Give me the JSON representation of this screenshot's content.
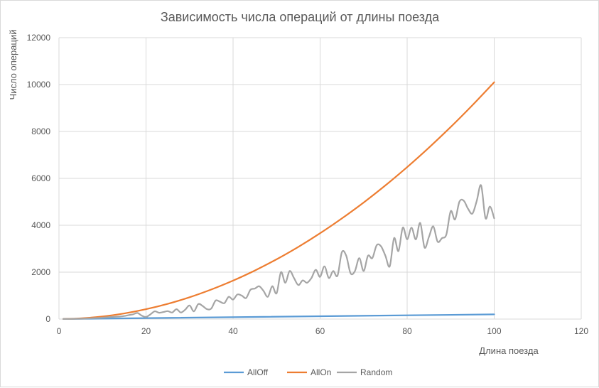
{
  "chart_data": {
    "type": "line",
    "title": "Зависимость числа операций от длины поезда",
    "xlabel": "Длина поезда",
    "ylabel": "Число операций",
    "xlim": [
      0,
      120
    ],
    "ylim": [
      0,
      12000
    ],
    "xticks": [
      0,
      20,
      40,
      60,
      80,
      100,
      120
    ],
    "yticks": [
      0,
      2000,
      4000,
      6000,
      8000,
      10000,
      12000
    ],
    "grid": true,
    "legend_position": "bottom",
    "series": [
      {
        "name": "AllOff",
        "color": "#5b9bd5",
        "x": [
          1,
          100
        ],
        "values": [
          2,
          200
        ]
      },
      {
        "name": "AllOn",
        "color": "#ed7d31",
        "x": [
          1,
          5,
          10,
          15,
          20,
          25,
          30,
          35,
          40,
          45,
          50,
          55,
          60,
          65,
          70,
          75,
          80,
          85,
          90,
          95,
          100
        ],
        "values": [
          2,
          30,
          110,
          240,
          420,
          650,
          930,
          1260,
          1640,
          2070,
          2550,
          3080,
          3660,
          4290,
          4970,
          5700,
          6480,
          7310,
          8190,
          9120,
          10100
        ]
      },
      {
        "name": "Random",
        "color": "#a5a5a5",
        "x": [
          1,
          5,
          8,
          10,
          12,
          14,
          15,
          16,
          17,
          18,
          19,
          20,
          21,
          22,
          23,
          24,
          25,
          26,
          27,
          28,
          29,
          30,
          31,
          32,
          33,
          34,
          35,
          36,
          37,
          38,
          39,
          40,
          41,
          42,
          43,
          44,
          45,
          46,
          47,
          48,
          49,
          50,
          51,
          52,
          53,
          54,
          55,
          56,
          57,
          58,
          59,
          60,
          61,
          62,
          63,
          64,
          65,
          66,
          67,
          68,
          69,
          70,
          71,
          72,
          73,
          74,
          75,
          76,
          77,
          78,
          79,
          80,
          81,
          82,
          83,
          84,
          85,
          86,
          87,
          88,
          89,
          90,
          91,
          92,
          93,
          94,
          95,
          96,
          97,
          98,
          99,
          100
        ],
        "values": [
          2,
          15,
          40,
          60,
          90,
          110,
          130,
          170,
          200,
          260,
          150,
          90,
          200,
          330,
          270,
          300,
          340,
          280,
          420,
          280,
          400,
          580,
          330,
          640,
          560,
          420,
          450,
          790,
          740,
          680,
          950,
          830,
          1050,
          1000,
          900,
          1250,
          1300,
          1400,
          1200,
          950,
          1400,
          1100,
          2000,
          1550,
          2050,
          1750,
          1450,
          1650,
          1550,
          1750,
          2100,
          1800,
          2250,
          1750,
          2050,
          1850,
          2850,
          2700,
          1950,
          2050,
          2600,
          2050,
          2700,
          2600,
          3150,
          3100,
          2700,
          2250,
          3450,
          2900,
          3900,
          3400,
          3900,
          3400,
          4100,
          3050,
          3500,
          3950,
          3300,
          3450,
          3600,
          4600,
          4250,
          5000,
          5050,
          4700,
          4500,
          5050,
          5700,
          4300,
          4800,
          4300
        ]
      }
    ]
  }
}
